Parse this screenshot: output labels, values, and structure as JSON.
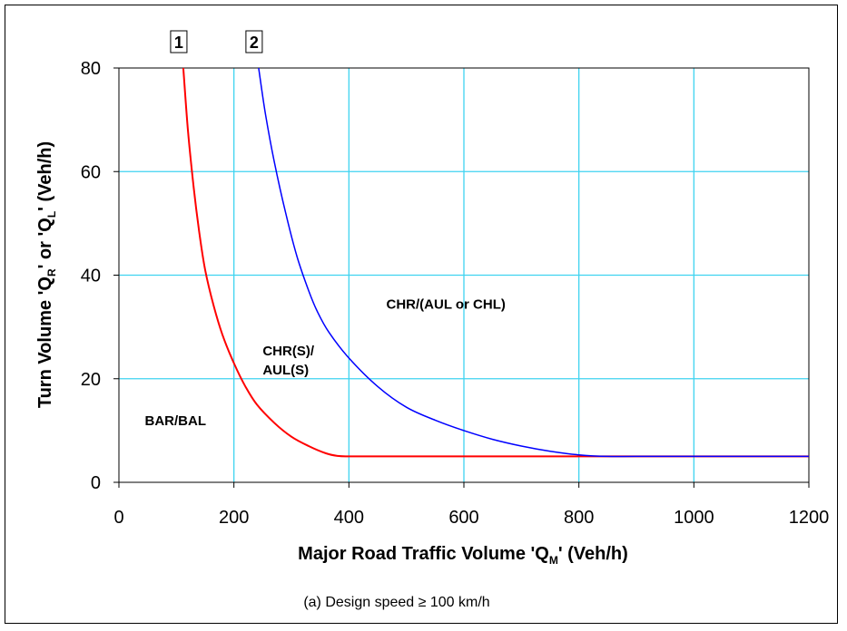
{
  "chart_data": {
    "type": "line",
    "title": "",
    "caption": "(a)  Design speed ≥ 100 km/h",
    "xlabel_main": "Major Road Traffic Volume 'Q",
    "xlabel_sub": "M",
    "xlabel_tail": "' (Veh/h)",
    "ylabel_parts": [
      "Turn Volume 'Q",
      "R",
      "' or 'Q",
      "L",
      "' (Veh/h)"
    ],
    "xlim": [
      0,
      1200
    ],
    "ylim": [
      0,
      80
    ],
    "xticks": [
      0,
      200,
      400,
      600,
      800,
      1000,
      1200
    ],
    "yticks": [
      0,
      20,
      40,
      60,
      80
    ],
    "grid": true,
    "series": [
      {
        "name": "1",
        "color": "#ff0000",
        "points": [
          [
            112,
            80
          ],
          [
            120,
            68
          ],
          [
            130,
            57
          ],
          [
            140,
            48
          ],
          [
            150,
            41
          ],
          [
            165,
            34
          ],
          [
            180,
            28.5
          ],
          [
            200,
            23
          ],
          [
            220,
            18.5
          ],
          [
            240,
            15
          ],
          [
            270,
            11.5
          ],
          [
            300,
            8.8
          ],
          [
            330,
            7
          ],
          [
            360,
            5.6
          ],
          [
            380,
            5.1
          ],
          [
            400,
            5
          ],
          [
            450,
            5
          ],
          [
            600,
            5
          ],
          [
            800,
            5
          ],
          [
            1000,
            5
          ],
          [
            1200,
            5
          ]
        ]
      },
      {
        "name": "2",
        "color": "#0000ff",
        "points": [
          [
            243,
            80
          ],
          [
            255,
            71
          ],
          [
            270,
            62
          ],
          [
            290,
            52
          ],
          [
            310,
            43.5
          ],
          [
            330,
            37
          ],
          [
            345,
            33
          ],
          [
            365,
            29
          ],
          [
            400,
            24
          ],
          [
            450,
            18.5
          ],
          [
            500,
            14.5
          ],
          [
            550,
            12
          ],
          [
            600,
            10
          ],
          [
            650,
            8.3
          ],
          [
            700,
            7
          ],
          [
            750,
            6
          ],
          [
            800,
            5.3
          ],
          [
            850,
            5
          ],
          [
            900,
            5
          ],
          [
            1000,
            5
          ],
          [
            1200,
            5
          ]
        ]
      }
    ],
    "curve_ids": [
      {
        "text": "1",
        "x": 112
      },
      {
        "text": "2",
        "x": 243
      }
    ],
    "region_labels": [
      {
        "lines": [
          "BAR/BAL"
        ],
        "x": 45,
        "y": 11
      },
      {
        "lines": [
          "CHR(S)/",
          "AUL(S)"
        ],
        "x": 250,
        "y": 24.5
      },
      {
        "lines": [
          "CHR/(AUL or CHL)"
        ],
        "x": 465,
        "y": 33.5
      }
    ]
  }
}
